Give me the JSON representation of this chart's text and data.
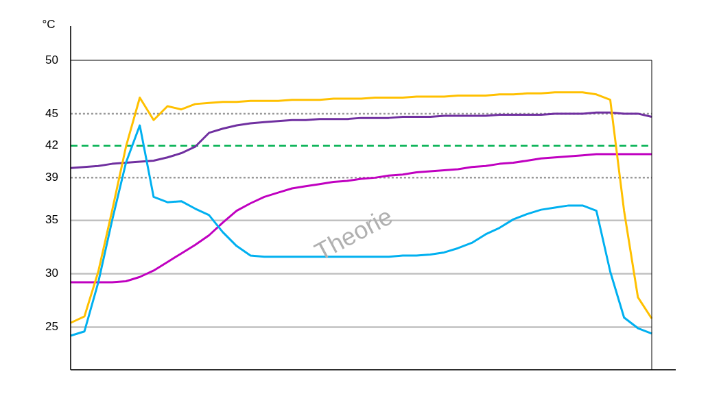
{
  "chart_data": {
    "type": "line",
    "ylabel": "°C",
    "annotations": [
      "Theorie"
    ],
    "categories": [
      null,
      null,
      null,
      null,
      null,
      null,
      null,
      null,
      null,
      null,
      null,
      null,
      null,
      null,
      null,
      null,
      null,
      null,
      null,
      null,
      null,
      null,
      null,
      null,
      null,
      null,
      null,
      null,
      null,
      null,
      null,
      null,
      null,
      null,
      null,
      null,
      null,
      null,
      null,
      null,
      null,
      null,
      null
    ],
    "series": [
      {
        "color": "#ffc000",
        "values": [
          25.4,
          26.0,
          30.2,
          35.9,
          41.9,
          46.5,
          44.4,
          45.7,
          45.4,
          45.9,
          46.0,
          46.1,
          46.1,
          46.2,
          46.2,
          46.2,
          46.3,
          46.3,
          46.3,
          46.4,
          46.4,
          46.4,
          46.5,
          46.5,
          46.5,
          46.6,
          46.6,
          46.6,
          46.7,
          46.7,
          46.7,
          46.8,
          46.8,
          46.9,
          46.9,
          47.0,
          47.0,
          47.0,
          46.8,
          46.3,
          35.9,
          27.8,
          25.8
        ]
      },
      {
        "color": "#00b0f0",
        "values": [
          24.2,
          24.6,
          29.2,
          35.0,
          40.4,
          43.9,
          37.2,
          36.7,
          36.8,
          36.1,
          35.5,
          33.9,
          32.6,
          31.7,
          31.6,
          31.6,
          31.6,
          31.6,
          31.6,
          31.6,
          31.6,
          31.6,
          31.6,
          31.6,
          31.7,
          31.7,
          31.8,
          32.0,
          32.4,
          32.9,
          33.7,
          34.3,
          35.1,
          35.6,
          36.0,
          36.2,
          36.4,
          36.4,
          35.9,
          30.2,
          25.9,
          24.9,
          24.4
        ]
      },
      {
        "color": "#7030a0",
        "values": [
          39.9,
          40.0,
          40.1,
          40.3,
          40.4,
          40.5,
          40.6,
          40.9,
          41.3,
          41.9,
          43.2,
          43.6,
          43.9,
          44.1,
          44.2,
          44.3,
          44.4,
          44.4,
          44.5,
          44.5,
          44.5,
          44.6,
          44.6,
          44.6,
          44.7,
          44.7,
          44.7,
          44.8,
          44.8,
          44.8,
          44.8,
          44.9,
          44.9,
          44.9,
          44.9,
          45.0,
          45.0,
          45.0,
          45.1,
          45.1,
          45.0,
          45.0,
          44.7
        ]
      },
      {
        "color": "#c000c0",
        "values": [
          29.2,
          29.2,
          29.2,
          29.2,
          29.3,
          29.7,
          30.3,
          31.1,
          31.9,
          32.7,
          33.6,
          34.8,
          35.9,
          36.6,
          37.2,
          37.6,
          38.0,
          38.2,
          38.4,
          38.6,
          38.7,
          38.9,
          39.0,
          39.2,
          39.3,
          39.5,
          39.6,
          39.7,
          39.8,
          40.0,
          40.1,
          40.3,
          40.4,
          40.6,
          40.8,
          40.9,
          41.0,
          41.1,
          41.2,
          41.2,
          41.2,
          41.2,
          41.2
        ]
      }
    ],
    "ylim": [
      21,
      50
    ],
    "yticks": [
      25,
      30,
      35,
      39,
      42,
      45,
      50
    ],
    "grid": false,
    "tick_labels": "y",
    "legend": false,
    "marker": "none",
    "line_style": "solid",
    "ref_lines": [
      {
        "axis": "y",
        "value": 45,
        "color": "#999999",
        "line_style": "dotted"
      },
      {
        "axis": "y",
        "value": 42,
        "color": "#00b050",
        "line_style": "dashed"
      },
      {
        "axis": "y",
        "value": 39,
        "color": "#999999",
        "line_style": "dotted"
      },
      {
        "axis": "y",
        "value": 35,
        "color": "#c0c0c0",
        "line_style": "solid"
      },
      {
        "axis": "y",
        "value": 30,
        "color": "#c0c0c0",
        "line_style": "solid"
      },
      {
        "axis": "y",
        "value": 25,
        "color": "#c0c0c0",
        "line_style": "solid"
      }
    ]
  }
}
